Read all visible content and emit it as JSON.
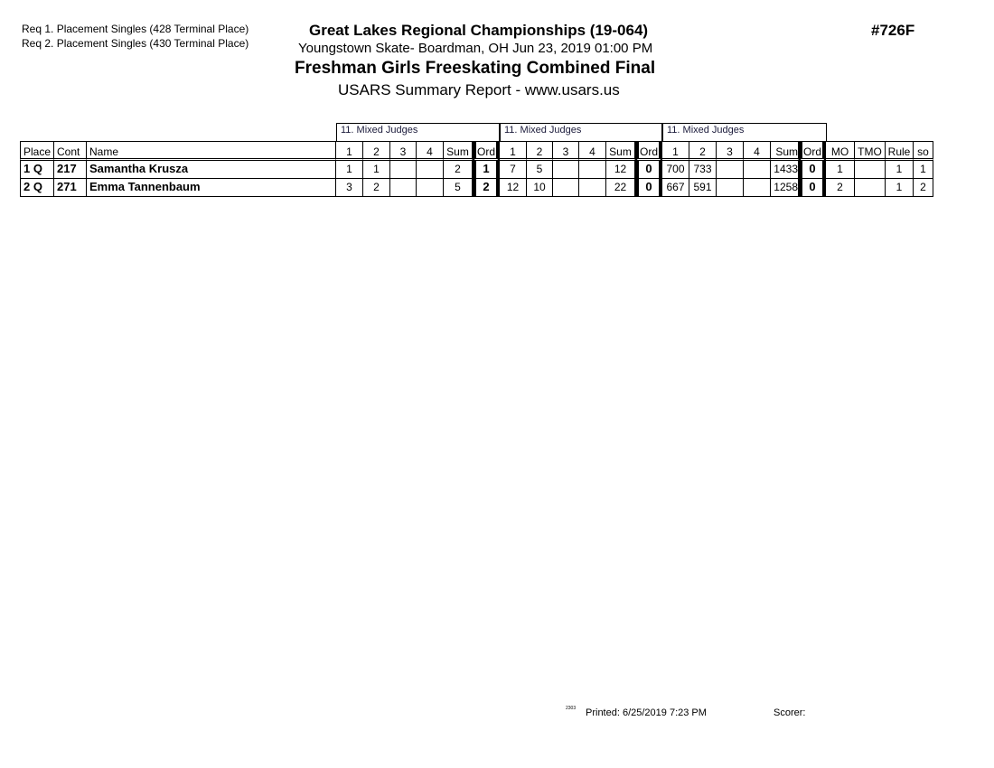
{
  "requirements": [
    "Req  1.  Placement Singles (428 Terminal Place)",
    "Req  2.  Placement Singles (430 Terminal Place)"
  ],
  "header": {
    "title": "Great Lakes Regional Championships (19-064)",
    "location": "Youngstown Skate- Boardman, OH  Jun 23, 2019  01:00 PM",
    "event": "Freshman Girls Freeskating Combined Final",
    "report": "USARS Summary Report - www.usars.us",
    "event_number": "#726F"
  },
  "table": {
    "groups": [
      "11.  Mixed Judges",
      "11.  Mixed Judges",
      "11.  Mixed Judges"
    ],
    "columns": [
      "Place",
      "Cont",
      "Name",
      "1",
      "2",
      "3",
      "4",
      "Sum",
      "Ord",
      "1",
      "2",
      "3",
      "4",
      "Sum",
      "Ord",
      "1",
      "2",
      "3",
      "4",
      "Sum",
      "Ord",
      "MO",
      "TMO",
      "Rule",
      "so"
    ],
    "rows": [
      [
        "1 Q",
        "217",
        "Samantha Krusza",
        "1",
        "1",
        "",
        "",
        "2",
        "1",
        "7",
        "5",
        "",
        "",
        "12",
        "0",
        "700",
        "733",
        "",
        "",
        "1433",
        "0",
        "1",
        "",
        "1",
        "1"
      ],
      [
        "2 Q",
        "271",
        "Emma Tannenbaum",
        "3",
        "2",
        "",
        "",
        "5",
        "2",
        "12",
        "10",
        "",
        "",
        "22",
        "0",
        "667",
        "591",
        "",
        "",
        "1258",
        "0",
        "2",
        "",
        "1",
        "2"
      ]
    ]
  },
  "footer": {
    "code": "2303",
    "printed": "Printed:  6/25/2019  7:23 PM",
    "scorer": "Scorer:"
  }
}
